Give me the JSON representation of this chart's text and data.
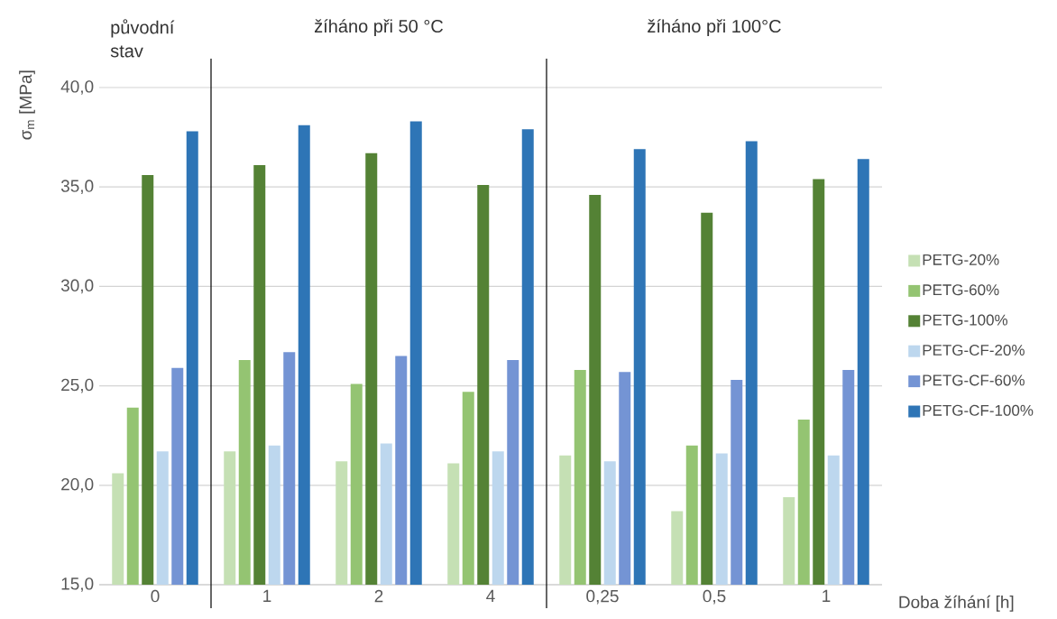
{
  "chart_data": {
    "type": "bar",
    "ylabel": "σ$_{m}$  [MPa]",
    "xlabel": "Doba žíhání [h]",
    "categories": [
      "0",
      "1",
      "2",
      "4",
      "0,25",
      "0,5",
      "1"
    ],
    "series": [
      {
        "name": "PETG-20%",
        "color": "#c5e0b4",
        "values": [
          20.6,
          21.7,
          21.2,
          21.1,
          21.5,
          18.7,
          19.4
        ]
      },
      {
        "name": "PETG-60%",
        "color": "#94c472",
        "values": [
          23.9,
          26.3,
          25.1,
          24.7,
          25.8,
          22.0,
          23.3
        ]
      },
      {
        "name": "PETG-100%",
        "color": "#548235",
        "values": [
          35.6,
          36.1,
          36.7,
          35.1,
          34.6,
          33.7,
          35.4
        ]
      },
      {
        "name": "PETG-CF-20%",
        "color": "#bdd7ee",
        "values": [
          21.7,
          22.0,
          22.1,
          21.7,
          21.2,
          21.6,
          21.5
        ]
      },
      {
        "name": "PETG-CF-60%",
        "color": "#7494d4",
        "values": [
          25.9,
          26.7,
          26.5,
          26.3,
          25.7,
          25.3,
          25.8
        ]
      },
      {
        "name": "PETG-CF-100%",
        "color": "#2e75b6",
        "values": [
          37.8,
          38.1,
          38.3,
          37.9,
          36.9,
          37.3,
          36.4
        ]
      }
    ],
    "ylim": [
      15,
      40
    ],
    "yticks": [
      {
        "value": 15,
        "label": "15,0"
      },
      {
        "value": 20,
        "label": "20,0"
      },
      {
        "value": 25,
        "label": "25,0"
      },
      {
        "value": 30,
        "label": "30,0"
      },
      {
        "value": 35,
        "label": "35,0"
      },
      {
        "value": 40,
        "label": "40,0"
      }
    ],
    "grid": "y",
    "legend": "right",
    "annotations": [
      "původní stav",
      "žíháno při 50 °C",
      "žíháno při 100°C"
    ]
  }
}
